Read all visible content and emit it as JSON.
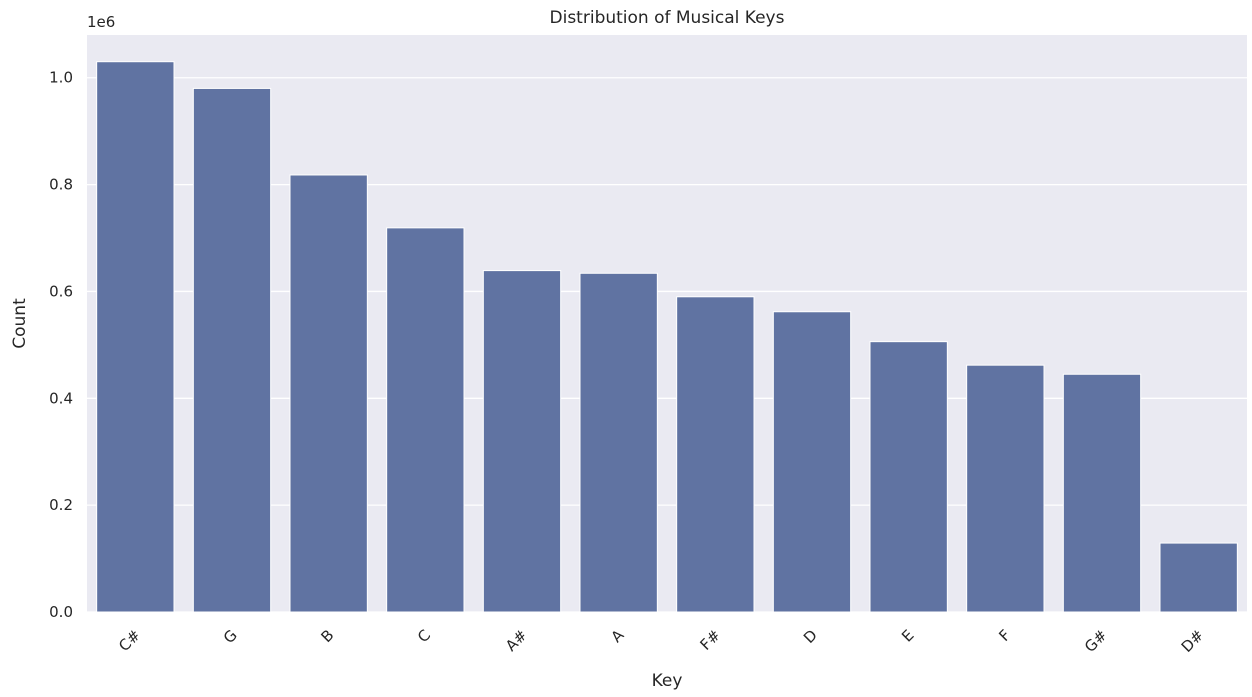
{
  "chart_data": {
    "type": "bar",
    "title": "Distribution of Musical Keys",
    "xlabel": "Key",
    "ylabel": "Count",
    "offset_text": "1e6",
    "categories": [
      "C#",
      "G",
      "B",
      "C",
      "A#",
      "A",
      "F#",
      "D",
      "E",
      "F",
      "G#",
      "D#"
    ],
    "values": [
      1030000,
      980000,
      818000,
      719000,
      639000,
      634000,
      590000,
      562000,
      506000,
      462000,
      445000,
      129000
    ],
    "ylim": [
      0,
      1080000
    ],
    "yticks": [
      0.0,
      0.2,
      0.4,
      0.6,
      0.8,
      1.0
    ],
    "ytick_labels": [
      "0.0",
      "0.2",
      "0.4",
      "0.6",
      "0.8",
      "1.0"
    ],
    "grid": true,
    "colors": {
      "bar": "#6073a2",
      "background": "#eaeaf2",
      "grid": "#ffffff",
      "text": "#262626"
    }
  }
}
